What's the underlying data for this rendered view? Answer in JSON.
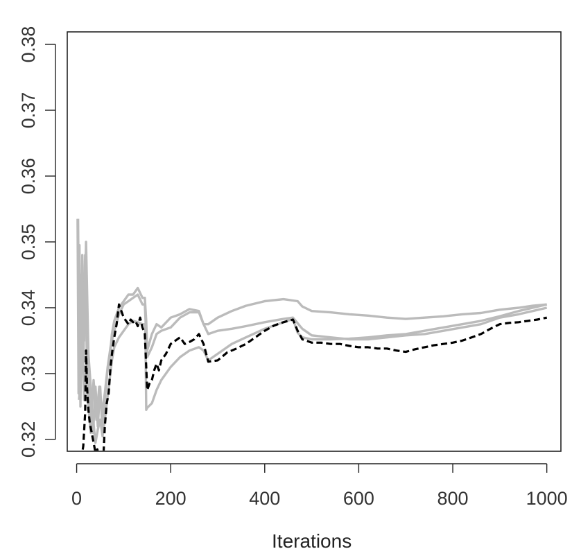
{
  "chart_data": {
    "type": "line",
    "title": "",
    "xlabel": "Iterations",
    "ylabel": "",
    "xlim": [
      -20,
      1030
    ],
    "ylim": [
      0.3182,
      0.3819
    ],
    "xticks": [
      0,
      200,
      400,
      600,
      800,
      1000
    ],
    "xtick_labels": [
      "0",
      "200",
      "400",
      "600",
      "800",
      "1000"
    ],
    "yticks": [
      0.32,
      0.33,
      0.34,
      0.35,
      0.36,
      0.37,
      0.38
    ],
    "ytick_labels": [
      "0.32",
      "0.33",
      "0.34",
      "0.35",
      "0.36",
      "0.37",
      "0.38"
    ],
    "grid": false,
    "legend": "none",
    "series": [
      {
        "color": "#bbbbbb",
        "style": "solid",
        "x": [
          2,
          4,
          6,
          8,
          12,
          16,
          20,
          25,
          30,
          35,
          40,
          45,
          50,
          55,
          60,
          65,
          70,
          75,
          80,
          85,
          90,
          100,
          110,
          120,
          130,
          140,
          145,
          148,
          150,
          160,
          170,
          180,
          200,
          220,
          240,
          260,
          270,
          280,
          300,
          330,
          360,
          400,
          440,
          470,
          480,
          500,
          540,
          580,
          620,
          660,
          700,
          740,
          780,
          820,
          860,
          900,
          940,
          970,
          1000
        ],
        "y": [
          0.3535,
          0.327,
          0.3495,
          0.325,
          0.348,
          0.335,
          0.35,
          0.333,
          0.328,
          0.321,
          0.328,
          0.322,
          0.328,
          0.321,
          0.326,
          0.33,
          0.332,
          0.336,
          0.338,
          0.339,
          0.34,
          0.341,
          0.342,
          0.342,
          0.343,
          0.3415,
          0.3415,
          0.338,
          0.3335,
          0.336,
          0.3375,
          0.337,
          0.3385,
          0.339,
          0.3398,
          0.3395,
          0.3375,
          0.3375,
          0.3385,
          0.3395,
          0.3403,
          0.341,
          0.3413,
          0.341,
          0.3402,
          0.3395,
          0.3393,
          0.339,
          0.3388,
          0.3385,
          0.3383,
          0.3385,
          0.3387,
          0.339,
          0.3392,
          0.3397,
          0.34,
          0.3403,
          0.3405
        ]
      },
      {
        "color": "#bbbbbb",
        "style": "solid",
        "x": [
          3,
          6,
          10,
          14,
          18,
          22,
          26,
          30,
          36,
          42,
          48,
          54,
          60,
          66,
          72,
          78,
          84,
          90,
          100,
          110,
          120,
          130,
          140,
          145,
          150,
          160,
          170,
          180,
          200,
          220,
          240,
          260,
          270,
          280,
          300,
          330,
          360,
          400,
          440,
          460,
          480,
          500,
          540,
          580,
          620,
          660,
          700,
          740,
          780,
          820,
          860,
          900,
          940,
          970,
          1000
        ],
        "y": [
          0.3535,
          0.328,
          0.345,
          0.33,
          0.348,
          0.331,
          0.327,
          0.322,
          0.329,
          0.323,
          0.328,
          0.324,
          0.327,
          0.331,
          0.334,
          0.336,
          0.3375,
          0.339,
          0.3405,
          0.341,
          0.3415,
          0.342,
          0.3405,
          0.3405,
          0.3325,
          0.334,
          0.336,
          0.3365,
          0.337,
          0.3385,
          0.3393,
          0.3393,
          0.3375,
          0.336,
          0.3365,
          0.3368,
          0.3372,
          0.3378,
          0.3383,
          0.3385,
          0.3368,
          0.3358,
          0.3355,
          0.3352,
          0.3352,
          0.3355,
          0.3358,
          0.336,
          0.3365,
          0.337,
          0.3375,
          0.3385,
          0.339,
          0.3395,
          0.34
        ]
      },
      {
        "color": "#bbbbbb",
        "style": "solid",
        "x": [
          5,
          8,
          12,
          16,
          20,
          25,
          30,
          35,
          40,
          45,
          50,
          55,
          60,
          65,
          70,
          75,
          80,
          90,
          100,
          110,
          120,
          130,
          140,
          146,
          148,
          150,
          160,
          170,
          180,
          200,
          220,
          240,
          260,
          270,
          280,
          300,
          330,
          360,
          400,
          440,
          460,
          470,
          480,
          500,
          540,
          580,
          620,
          660,
          700,
          740,
          780,
          820,
          860,
          900,
          940,
          970,
          1000
        ],
        "y": [
          0.326,
          0.329,
          0.334,
          0.326,
          0.331,
          0.325,
          0.321,
          0.323,
          0.3195,
          0.3215,
          0.323,
          0.3205,
          0.323,
          0.326,
          0.329,
          0.332,
          0.334,
          0.3355,
          0.3365,
          0.3375,
          0.338,
          0.3378,
          0.3375,
          0.3375,
          0.3245,
          0.3248,
          0.3255,
          0.3275,
          0.329,
          0.331,
          0.3325,
          0.3335,
          0.334,
          0.3335,
          0.332,
          0.333,
          0.3345,
          0.3355,
          0.3368,
          0.3378,
          0.3383,
          0.3362,
          0.3355,
          0.3352,
          0.3352,
          0.3353,
          0.3355,
          0.3358,
          0.336,
          0.3365,
          0.337,
          0.3375,
          0.338,
          0.3387,
          0.3395,
          0.34,
          0.3405
        ]
      },
      {
        "color": "#000000",
        "style": "dashed",
        "x": [
          10,
          14,
          18,
          20,
          22,
          25,
          28,
          32,
          36,
          40,
          44,
          48,
          52,
          56,
          60,
          64,
          68,
          72,
          76,
          80,
          85,
          90,
          95,
          100,
          105,
          110,
          115,
          120,
          125,
          130,
          135,
          140,
          145,
          150,
          155,
          160,
          165,
          170,
          175,
          180,
          190,
          200,
          210,
          220,
          230,
          240,
          250,
          260,
          270,
          280,
          300,
          320,
          340,
          360,
          380,
          400,
          420,
          440,
          460,
          470,
          480,
          500,
          520,
          540,
          560,
          580,
          600,
          620,
          640,
          660,
          680,
          700,
          720,
          740,
          760,
          780,
          800,
          820,
          840,
          860,
          880,
          900,
          920,
          940,
          960,
          980,
          1000
        ],
        "y": [
          0.317,
          0.319,
          0.324,
          0.3335,
          0.328,
          0.3245,
          0.3225,
          0.321,
          0.3195,
          0.318,
          0.3185,
          0.317,
          0.3175,
          0.316,
          0.322,
          0.3255,
          0.327,
          0.331,
          0.3335,
          0.3355,
          0.3375,
          0.3405,
          0.3395,
          0.3385,
          0.338,
          0.3375,
          0.3382,
          0.3378,
          0.338,
          0.3372,
          0.3385,
          0.337,
          0.336,
          0.3275,
          0.3285,
          0.329,
          0.3305,
          0.3315,
          0.3305,
          0.332,
          0.333,
          0.3345,
          0.335,
          0.3355,
          0.3345,
          0.3348,
          0.3352,
          0.336,
          0.3345,
          0.3318,
          0.332,
          0.3332,
          0.3338,
          0.3345,
          0.3355,
          0.3365,
          0.3373,
          0.3378,
          0.3382,
          0.3365,
          0.3352,
          0.3347,
          0.3347,
          0.3345,
          0.3345,
          0.3342,
          0.334,
          0.334,
          0.3338,
          0.3338,
          0.3335,
          0.3333,
          0.3337,
          0.334,
          0.3343,
          0.3345,
          0.3347,
          0.335,
          0.3355,
          0.336,
          0.3368,
          0.3375,
          0.3377,
          0.3378,
          0.338,
          0.3382,
          0.3385
        ]
      }
    ]
  }
}
